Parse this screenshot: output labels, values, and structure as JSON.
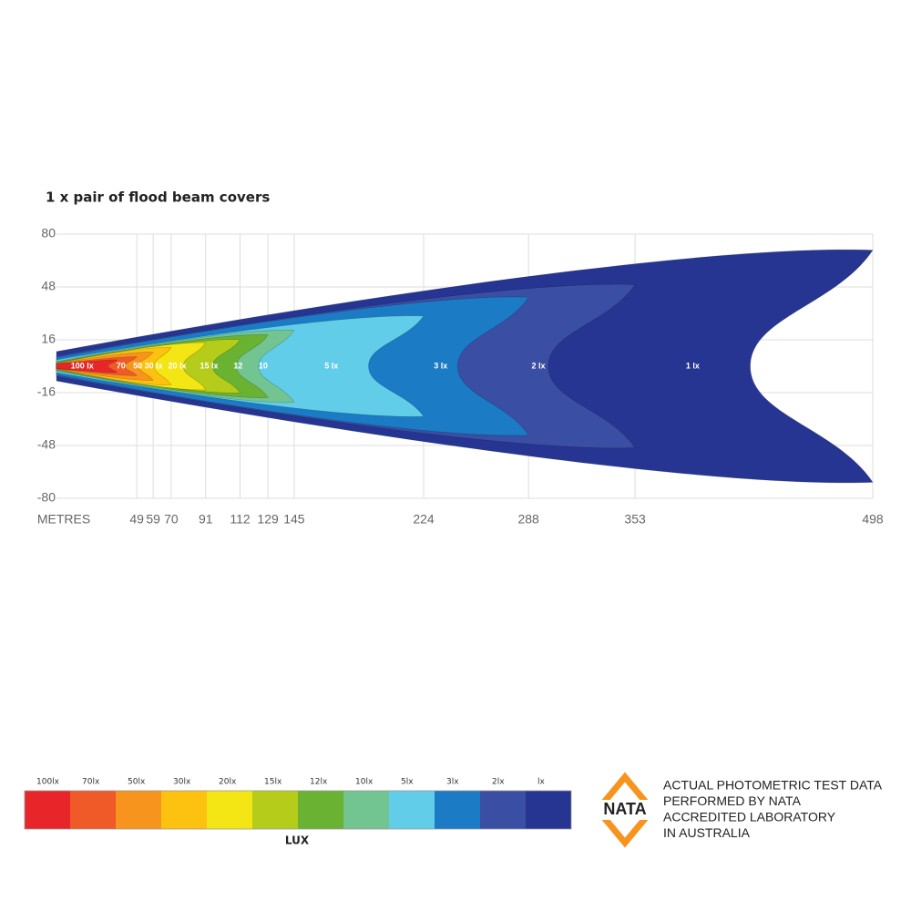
{
  "chart_data": {
    "type": "beam",
    "title": "1 x pair of flood beam covers",
    "x_label": "METRES",
    "xlim": [
      0,
      498
    ],
    "xticks": [
      49,
      59,
      70,
      91,
      112,
      129,
      145,
      224,
      288,
      353,
      498
    ],
    "ylim": [
      -80,
      80
    ],
    "yticks": [
      80,
      48,
      16,
      -16,
      -48,
      -80
    ],
    "grid": true,
    "series": [
      {
        "name": "100 lx",
        "color": "#e8262a",
        "reach": 37,
        "half_width": 4
      },
      {
        "name": "70",
        "color": "#ef5a28",
        "reach": 49,
        "half_width": 6
      },
      {
        "name": "50",
        "color": "#f7941d",
        "reach": 59,
        "half_width": 9
      },
      {
        "name": "30 lx",
        "color": "#fdc20f",
        "reach": 70,
        "half_width": 12
      },
      {
        "name": "20 lx",
        "color": "#f4e614",
        "reach": 91,
        "half_width": 15
      },
      {
        "name": "15 lx",
        "color": "#b5cc1b",
        "reach": 112,
        "half_width": 17
      },
      {
        "name": "12",
        "color": "#6ab232",
        "reach": 129,
        "half_width": 20
      },
      {
        "name": "10",
        "color": "#72c491",
        "reach": 145,
        "half_width": 23
      },
      {
        "name": "5 lx",
        "color": "#62cde8",
        "reach": 224,
        "half_width": 32
      },
      {
        "name": "3 lx",
        "color": "#1b7bc4",
        "reach": 288,
        "half_width": 44
      },
      {
        "name": "2 lx",
        "color": "#3a4ea3",
        "reach": 353,
        "half_width": 52
      },
      {
        "name": "1 lx",
        "color": "#263591",
        "reach": 498,
        "half_width": 74
      }
    ],
    "legend": {
      "title": "LUX",
      "labels": [
        "100lx",
        "70lx",
        "50lx",
        "30lx",
        "20lx",
        "15lx",
        "12lx",
        "10lx",
        "5lx",
        "3lx",
        "2lx",
        "lx"
      ]
    }
  },
  "badge": {
    "logo": "NATA",
    "lines": [
      "ACTUAL PHOTOMETRIC TEST DATA",
      "PERFORMED BY NATA",
      "ACCREDITED LABORATORY",
      "IN AUSTRALIA"
    ]
  }
}
